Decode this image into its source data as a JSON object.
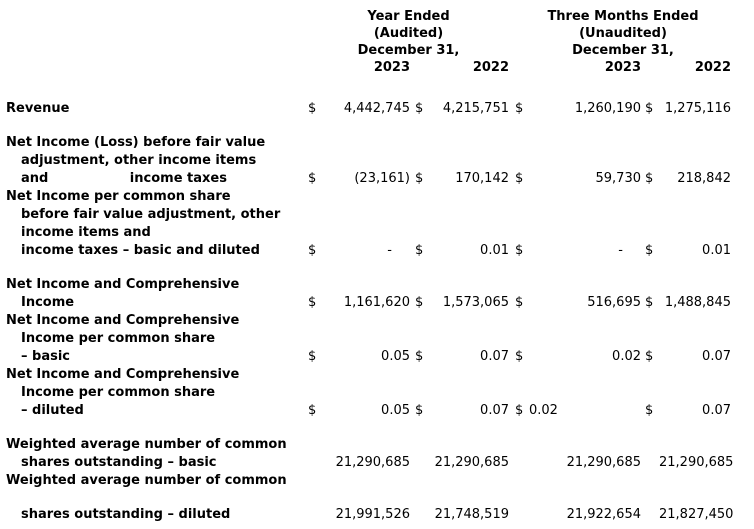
{
  "header": {
    "year_ended": {
      "title": "Year Ended",
      "subtitle": "(Audited)",
      "date": "December 31,",
      "col_2023": "2023",
      "col_2022": "2022"
    },
    "three_months_ended": {
      "title": "Three Months Ended",
      "subtitle": "(Unaudited)",
      "date": "December 31,",
      "col_2023": "2023",
      "col_2022": "2022"
    }
  },
  "lines": [
    {
      "label": "Revenue",
      "indent": false,
      "cells": [
        "$",
        "4,442,745",
        "$",
        "4,215,751",
        "$",
        "1,260,190",
        "$",
        "1,275,116"
      ]
    },
    {
      "spacer": true
    },
    {
      "label": "Net Income (Loss) before fair value",
      "indent": false
    },
    {
      "label": "adjustment, other income items",
      "indent": true
    },
    {
      "label": "and                  income taxes",
      "indent": true,
      "cells": [
        "$",
        "(23,161)",
        "$",
        "170,142",
        "$",
        "59,730",
        "$",
        "218,842"
      ]
    },
    {
      "label": "Net Income per common share",
      "indent": false
    },
    {
      "label": "before fair value adjustment, other",
      "indent": true
    },
    {
      "label": "income items and",
      "indent": true
    },
    {
      "label": "income taxes – basic and diluted",
      "indent": true,
      "cells": [
        "$",
        "-",
        "$",
        "0.01",
        "$",
        "-",
        "$",
        "0.01"
      ]
    },
    {
      "spacer": true
    },
    {
      "label": "Net Income and Comprehensive",
      "indent": false
    },
    {
      "label": "Income",
      "indent": true,
      "cells": [
        "$",
        "1,161,620",
        "$",
        "1,573,065",
        "$",
        "516,695",
        "$",
        "1,488,845"
      ]
    },
    {
      "label": "Net Income and Comprehensive",
      "indent": false
    },
    {
      "label": "Income per common share",
      "indent": true
    },
    {
      "label": "– basic",
      "indent": true,
      "cells": [
        "$",
        "0.05",
        "$",
        "0.07",
        "$",
        "0.02",
        "$",
        "0.07"
      ]
    },
    {
      "label": "Net Income and Comprehensive",
      "indent": false
    },
    {
      "label": "Income per common share",
      "indent": true
    },
    {
      "label": "– diluted",
      "indent": true,
      "v3_left": true,
      "cells": [
        "$",
        "0.05",
        "$",
        "0.07",
        "$",
        "0.02",
        "$",
        "0.07"
      ]
    },
    {
      "spacer": true
    },
    {
      "label": "Weighted average number of common",
      "indent": false
    },
    {
      "label": "shares outstanding – basic",
      "indent": true,
      "cells": [
        "",
        "21,290,685",
        "",
        "21,290,685",
        "",
        "21,290,685",
        "",
        "21,290,685"
      ]
    },
    {
      "label": "Weighted average number of common",
      "indent": false
    },
    {
      "spacer": true
    },
    {
      "label": "shares outstanding – diluted",
      "indent": true,
      "cells": [
        "",
        "21,991,526",
        "",
        "21,748,519",
        "",
        "21,922,654",
        "",
        "21,827,450"
      ]
    }
  ]
}
